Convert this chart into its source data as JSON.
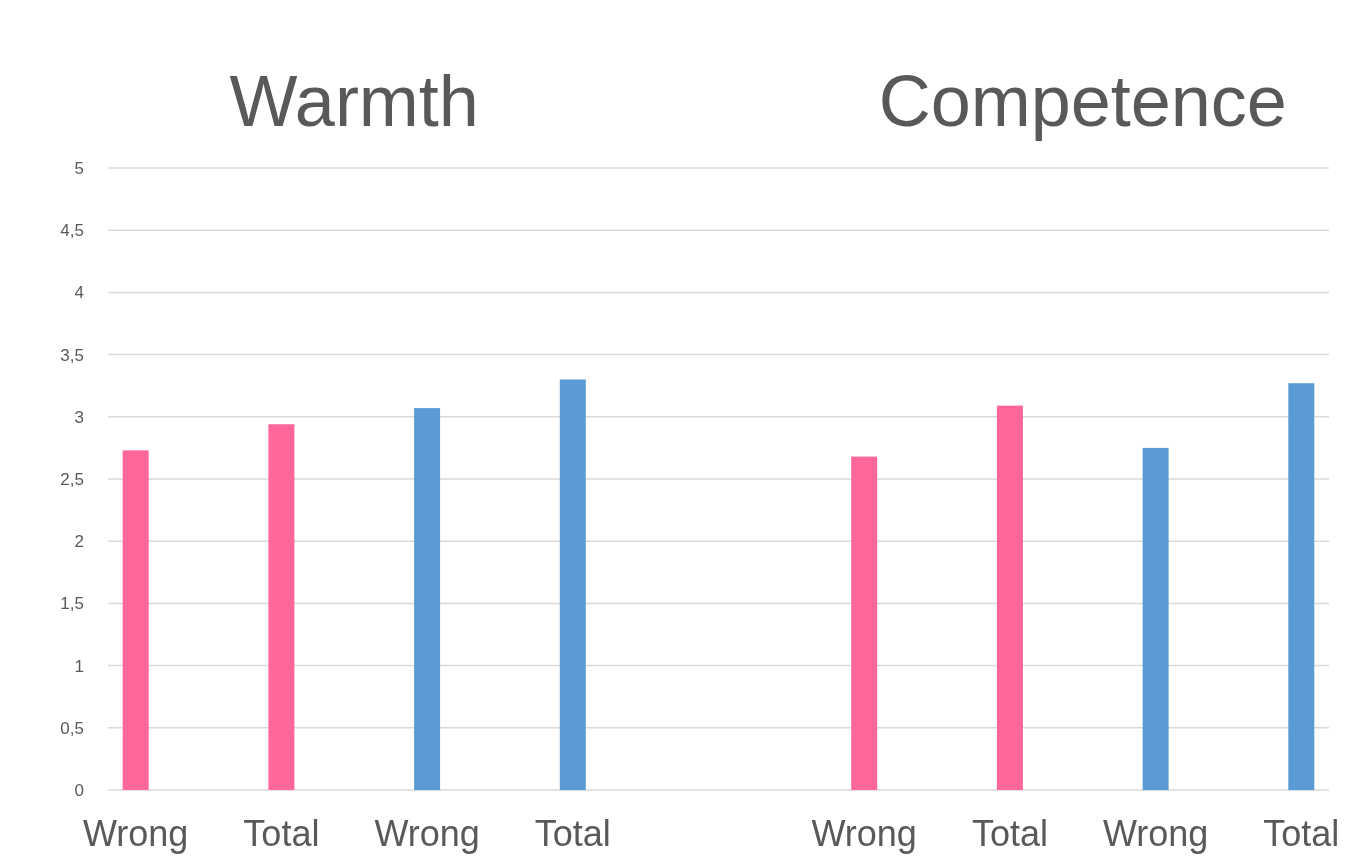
{
  "chart_data": {
    "type": "bar",
    "annotations": [
      "Warmth",
      "Competence"
    ],
    "categories": [
      "Wrong",
      "Total",
      "Wrong",
      "Total",
      null,
      "Wrong",
      "Total",
      "Wrong",
      "Total"
    ],
    "values": [
      2.73,
      2.94,
      3.07,
      3.3,
      null,
      2.68,
      3.09,
      2.75,
      3.27
    ],
    "colors": [
      "#ff6699",
      "#ff6699",
      "#5b9bd5",
      "#5b9bd5",
      null,
      "#ff6699",
      "#ff6699",
      "#5b9bd5",
      "#5b9bd5"
    ],
    "ylim": [
      0,
      5
    ],
    "yticks": [
      0,
      {
        "value": 0.5,
        "label": "0,5"
      },
      1,
      {
        "value": 1.5,
        "label": "1,5"
      },
      2,
      {
        "value": 2.5,
        "label": "2,5"
      },
      3,
      {
        "value": 3.5,
        "label": "3,5"
      },
      4,
      {
        "value": 4.5,
        "label": "4,5"
      },
      5
    ],
    "grid": true
  }
}
